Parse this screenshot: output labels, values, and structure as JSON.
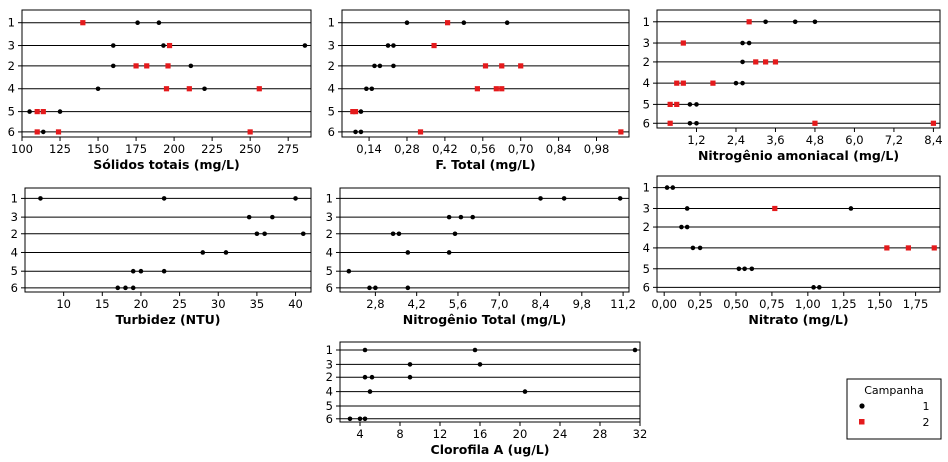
{
  "chart_data": [
    {
      "type": "scatter",
      "xlabel": "Sólidos totais (mg/L)",
      "xlim": [
        100,
        290
      ],
      "xticks": [
        100,
        125,
        150,
        175,
        200,
        225,
        250,
        275
      ],
      "xtick_labels": [
        "100",
        "125",
        "150",
        "175",
        "200",
        "225",
        "250",
        "275"
      ],
      "series": [
        {
          "group": "1",
          "points": [
            {
              "x": 140,
              "y": "1"
            },
            {
              "x": 176,
              "y": "1"
            },
            {
              "x": 190,
              "y": "1"
            },
            {
              "x": 160,
              "y": "3"
            },
            {
              "x": 193,
              "y": "3"
            },
            {
              "x": 286,
              "y": "3"
            },
            {
              "x": 160,
              "y": "2"
            },
            {
              "x": 182,
              "y": "2"
            },
            {
              "x": 211,
              "y": "2"
            },
            {
              "x": 150,
              "y": "4"
            },
            {
              "x": 210,
              "y": "4"
            },
            {
              "x": 220,
              "y": "4"
            },
            {
              "x": 105,
              "y": "5"
            },
            {
              "x": 110,
              "y": "5"
            },
            {
              "x": 125,
              "y": "5"
            },
            {
              "x": 110,
              "y": "6"
            },
            {
              "x": 114,
              "y": "6"
            }
          ]
        },
        {
          "group": "2",
          "points": [
            {
              "x": 140,
              "y": "1"
            },
            {
              "x": 197,
              "y": "3"
            },
            {
              "x": 182,
              "y": "2"
            },
            {
              "x": 175,
              "y": "2"
            },
            {
              "x": 196,
              "y": "2"
            },
            {
              "x": 210,
              "y": "4"
            },
            {
              "x": 195,
              "y": "4"
            },
            {
              "x": 256,
              "y": "4"
            },
            {
              "x": 110,
              "y": "5"
            },
            {
              "x": 114,
              "y": "5"
            },
            {
              "x": 110,
              "y": "6"
            },
            {
              "x": 124,
              "y": "6"
            },
            {
              "x": 250,
              "y": "6"
            }
          ]
        }
      ]
    },
    {
      "type": "scatter",
      "xlabel": "F. Total (mg/L)",
      "xlim": [
        0.04,
        1.1
      ],
      "xticks": [
        0.14,
        0.28,
        0.42,
        0.56,
        0.7,
        0.84,
        0.98
      ],
      "xtick_labels": [
        "0,14",
        "0,28",
        "0,42",
        "0,56",
        "0,70",
        "0,84",
        "0,98"
      ],
      "series": [
        {
          "group": "1",
          "points": [
            {
              "x": 0.28,
              "y": "1"
            },
            {
              "x": 0.49,
              "y": "1"
            },
            {
              "x": 0.65,
              "y": "1"
            },
            {
              "x": 0.21,
              "y": "3"
            },
            {
              "x": 0.23,
              "y": "3"
            },
            {
              "x": 0.16,
              "y": "2"
            },
            {
              "x": 0.18,
              "y": "2"
            },
            {
              "x": 0.23,
              "y": "2"
            },
            {
              "x": 0.13,
              "y": "4"
            },
            {
              "x": 0.15,
              "y": "4"
            },
            {
              "x": 0.09,
              "y": "5"
            },
            {
              "x": 0.11,
              "y": "5"
            },
            {
              "x": 0.09,
              "y": "6"
            },
            {
              "x": 0.11,
              "y": "6"
            }
          ]
        },
        {
          "group": "2",
          "points": [
            {
              "x": 0.43,
              "y": "1"
            },
            {
              "x": 0.38,
              "y": "3"
            },
            {
              "x": 0.57,
              "y": "2"
            },
            {
              "x": 0.63,
              "y": "2"
            },
            {
              "x": 0.7,
              "y": "2"
            },
            {
              "x": 0.54,
              "y": "4"
            },
            {
              "x": 0.61,
              "y": "4"
            },
            {
              "x": 0.63,
              "y": "4"
            },
            {
              "x": 0.08,
              "y": "5"
            },
            {
              "x": 0.09,
              "y": "5"
            },
            {
              "x": 0.33,
              "y": "6"
            },
            {
              "x": 1.07,
              "y": "6"
            }
          ]
        }
      ]
    },
    {
      "type": "scatter",
      "xlabel": "Nitrogênio amoniacal (mg/L)",
      "xlim": [
        0,
        8.6
      ],
      "xticks": [
        1.2,
        2.4,
        3.6,
        4.8,
        6.0,
        7.2,
        8.4
      ],
      "xtick_labels": [
        "1,2",
        "2,4",
        "3,6",
        "4,8",
        "6,0",
        "7,2",
        "8,4"
      ],
      "series": [
        {
          "group": "1",
          "points": [
            {
              "x": 3.3,
              "y": "1"
            },
            {
              "x": 4.2,
              "y": "1"
            },
            {
              "x": 4.8,
              "y": "1"
            },
            {
              "x": 2.6,
              "y": "3"
            },
            {
              "x": 2.8,
              "y": "3"
            },
            {
              "x": 2.6,
              "y": "2"
            },
            {
              "x": 2.4,
              "y": "4"
            },
            {
              "x": 2.6,
              "y": "4"
            },
            {
              "x": 1.0,
              "y": "5"
            },
            {
              "x": 1.2,
              "y": "5"
            },
            {
              "x": 1.0,
              "y": "6"
            },
            {
              "x": 1.2,
              "y": "6"
            }
          ]
        },
        {
          "group": "2",
          "points": [
            {
              "x": 2.8,
              "y": "1"
            },
            {
              "x": 0.8,
              "y": "3"
            },
            {
              "x": 3.0,
              "y": "2"
            },
            {
              "x": 3.3,
              "y": "2"
            },
            {
              "x": 3.6,
              "y": "2"
            },
            {
              "x": 0.6,
              "y": "4"
            },
            {
              "x": 0.8,
              "y": "4"
            },
            {
              "x": 1.7,
              "y": "4"
            },
            {
              "x": 0.4,
              "y": "5"
            },
            {
              "x": 0.6,
              "y": "5"
            },
            {
              "x": 0.4,
              "y": "6"
            },
            {
              "x": 4.8,
              "y": "6"
            },
            {
              "x": 8.4,
              "y": "6"
            }
          ]
        }
      ]
    },
    {
      "type": "scatter",
      "xlabel": "Turbidez (NTU)",
      "xlim": [
        5,
        42
      ],
      "xticks": [
        10,
        15,
        20,
        25,
        30,
        35,
        40
      ],
      "xtick_labels": [
        "10",
        "15",
        "20",
        "25",
        "30",
        "35",
        "40"
      ],
      "series": [
        {
          "group": "1",
          "points": [
            {
              "x": 7,
              "y": "1"
            },
            {
              "x": 23,
              "y": "1"
            },
            {
              "x": 40,
              "y": "1"
            },
            {
              "x": 34,
              "y": "3"
            },
            {
              "x": 37,
              "y": "3"
            },
            {
              "x": 35,
              "y": "2"
            },
            {
              "x": 36,
              "y": "2"
            },
            {
              "x": 41,
              "y": "2"
            },
            {
              "x": 28,
              "y": "4"
            },
            {
              "x": 31,
              "y": "4"
            },
            {
              "x": 19,
              "y": "5"
            },
            {
              "x": 20,
              "y": "5"
            },
            {
              "x": 23,
              "y": "5"
            },
            {
              "x": 17,
              "y": "6"
            },
            {
              "x": 18,
              "y": "6"
            },
            {
              "x": 19,
              "y": "6"
            }
          ]
        }
      ]
    },
    {
      "type": "scatter",
      "xlabel": "Nitrogênio Total (mg/L)",
      "xlim": [
        1.6,
        11.4
      ],
      "xticks": [
        2.8,
        4.2,
        5.6,
        7.0,
        8.4,
        9.8,
        11.2
      ],
      "xtick_labels": [
        "2,8",
        "4,2",
        "5,6",
        "7,0",
        "8,4",
        "9,8",
        "11,2"
      ],
      "series": [
        {
          "group": "1",
          "points": [
            {
              "x": 8.4,
              "y": "1"
            },
            {
              "x": 9.2,
              "y": "1"
            },
            {
              "x": 11.1,
              "y": "1"
            },
            {
              "x": 5.3,
              "y": "3"
            },
            {
              "x": 5.7,
              "y": "3"
            },
            {
              "x": 6.1,
              "y": "3"
            },
            {
              "x": 3.4,
              "y": "2"
            },
            {
              "x": 3.6,
              "y": "2"
            },
            {
              "x": 5.5,
              "y": "2"
            },
            {
              "x": 3.9,
              "y": "4"
            },
            {
              "x": 5.3,
              "y": "4"
            },
            {
              "x": 1.9,
              "y": "5"
            },
            {
              "x": 2.6,
              "y": "6"
            },
            {
              "x": 2.8,
              "y": "6"
            },
            {
              "x": 3.9,
              "y": "6"
            }
          ]
        }
      ]
    },
    {
      "type": "scatter",
      "xlabel": "Nitrato (mg/L)",
      "xlim": [
        -0.05,
        1.92
      ],
      "xticks": [
        0.0,
        0.25,
        0.5,
        0.75,
        1.0,
        1.25,
        1.5,
        1.75
      ],
      "xtick_labels": [
        "0,00",
        "0,25",
        "0,50",
        "0,75",
        "1,00",
        "1,25",
        "1,50",
        "1,75"
      ],
      "series": [
        {
          "group": "1",
          "points": [
            {
              "x": 0.02,
              "y": "1"
            },
            {
              "x": 0.06,
              "y": "1"
            },
            {
              "x": 0.16,
              "y": "3"
            },
            {
              "x": 1.3,
              "y": "3"
            },
            {
              "x": 0.12,
              "y": "2"
            },
            {
              "x": 0.16,
              "y": "2"
            },
            {
              "x": 0.2,
              "y": "4"
            },
            {
              "x": 0.25,
              "y": "4"
            },
            {
              "x": 0.52,
              "y": "5"
            },
            {
              "x": 0.56,
              "y": "5"
            },
            {
              "x": 0.61,
              "y": "5"
            },
            {
              "x": 1.04,
              "y": "6"
            },
            {
              "x": 1.08,
              "y": "6"
            }
          ]
        },
        {
          "group": "2",
          "points": [
            {
              "x": 0.77,
              "y": "3"
            },
            {
              "x": 1.55,
              "y": "4"
            },
            {
              "x": 1.7,
              "y": "4"
            },
            {
              "x": 1.88,
              "y": "4"
            }
          ]
        }
      ]
    },
    {
      "type": "scatter",
      "xlabel": "Clorofila A (ug/L)",
      "xlim": [
        2,
        32
      ],
      "xticks": [
        4,
        8,
        12,
        16,
        20,
        24,
        28,
        32
      ],
      "xtick_labels": [
        "4",
        "8",
        "12",
        "16",
        "20",
        "24",
        "28",
        "32"
      ],
      "series": [
        {
          "group": "1",
          "points": [
            {
              "x": 4.5,
              "y": "1"
            },
            {
              "x": 15.5,
              "y": "1"
            },
            {
              "x": 31.5,
              "y": "1"
            },
            {
              "x": 9.0,
              "y": "3"
            },
            {
              "x": 16.0,
              "y": "3"
            },
            {
              "x": 4.5,
              "y": "2"
            },
            {
              "x": 5.2,
              "y": "2"
            },
            {
              "x": 9.0,
              "y": "2"
            },
            {
              "x": 5.0,
              "y": "4"
            },
            {
              "x": 20.5,
              "y": "4"
            },
            {
              "x": 3.0,
              "y": "6"
            },
            {
              "x": 4.0,
              "y": "6"
            },
            {
              "x": 4.5,
              "y": "6"
            }
          ]
        }
      ]
    }
  ],
  "y_categories": [
    "1",
    "3",
    "2",
    "4",
    "5",
    "6"
  ],
  "legend": {
    "title": "Campanha",
    "items": [
      {
        "label": "1",
        "color": "#000000",
        "marker": "circle"
      },
      {
        "label": "2",
        "color": "#e41a1c",
        "marker": "square"
      }
    ]
  },
  "colors": {
    "group_1": "#000000",
    "group_2": "#e41a1c"
  }
}
